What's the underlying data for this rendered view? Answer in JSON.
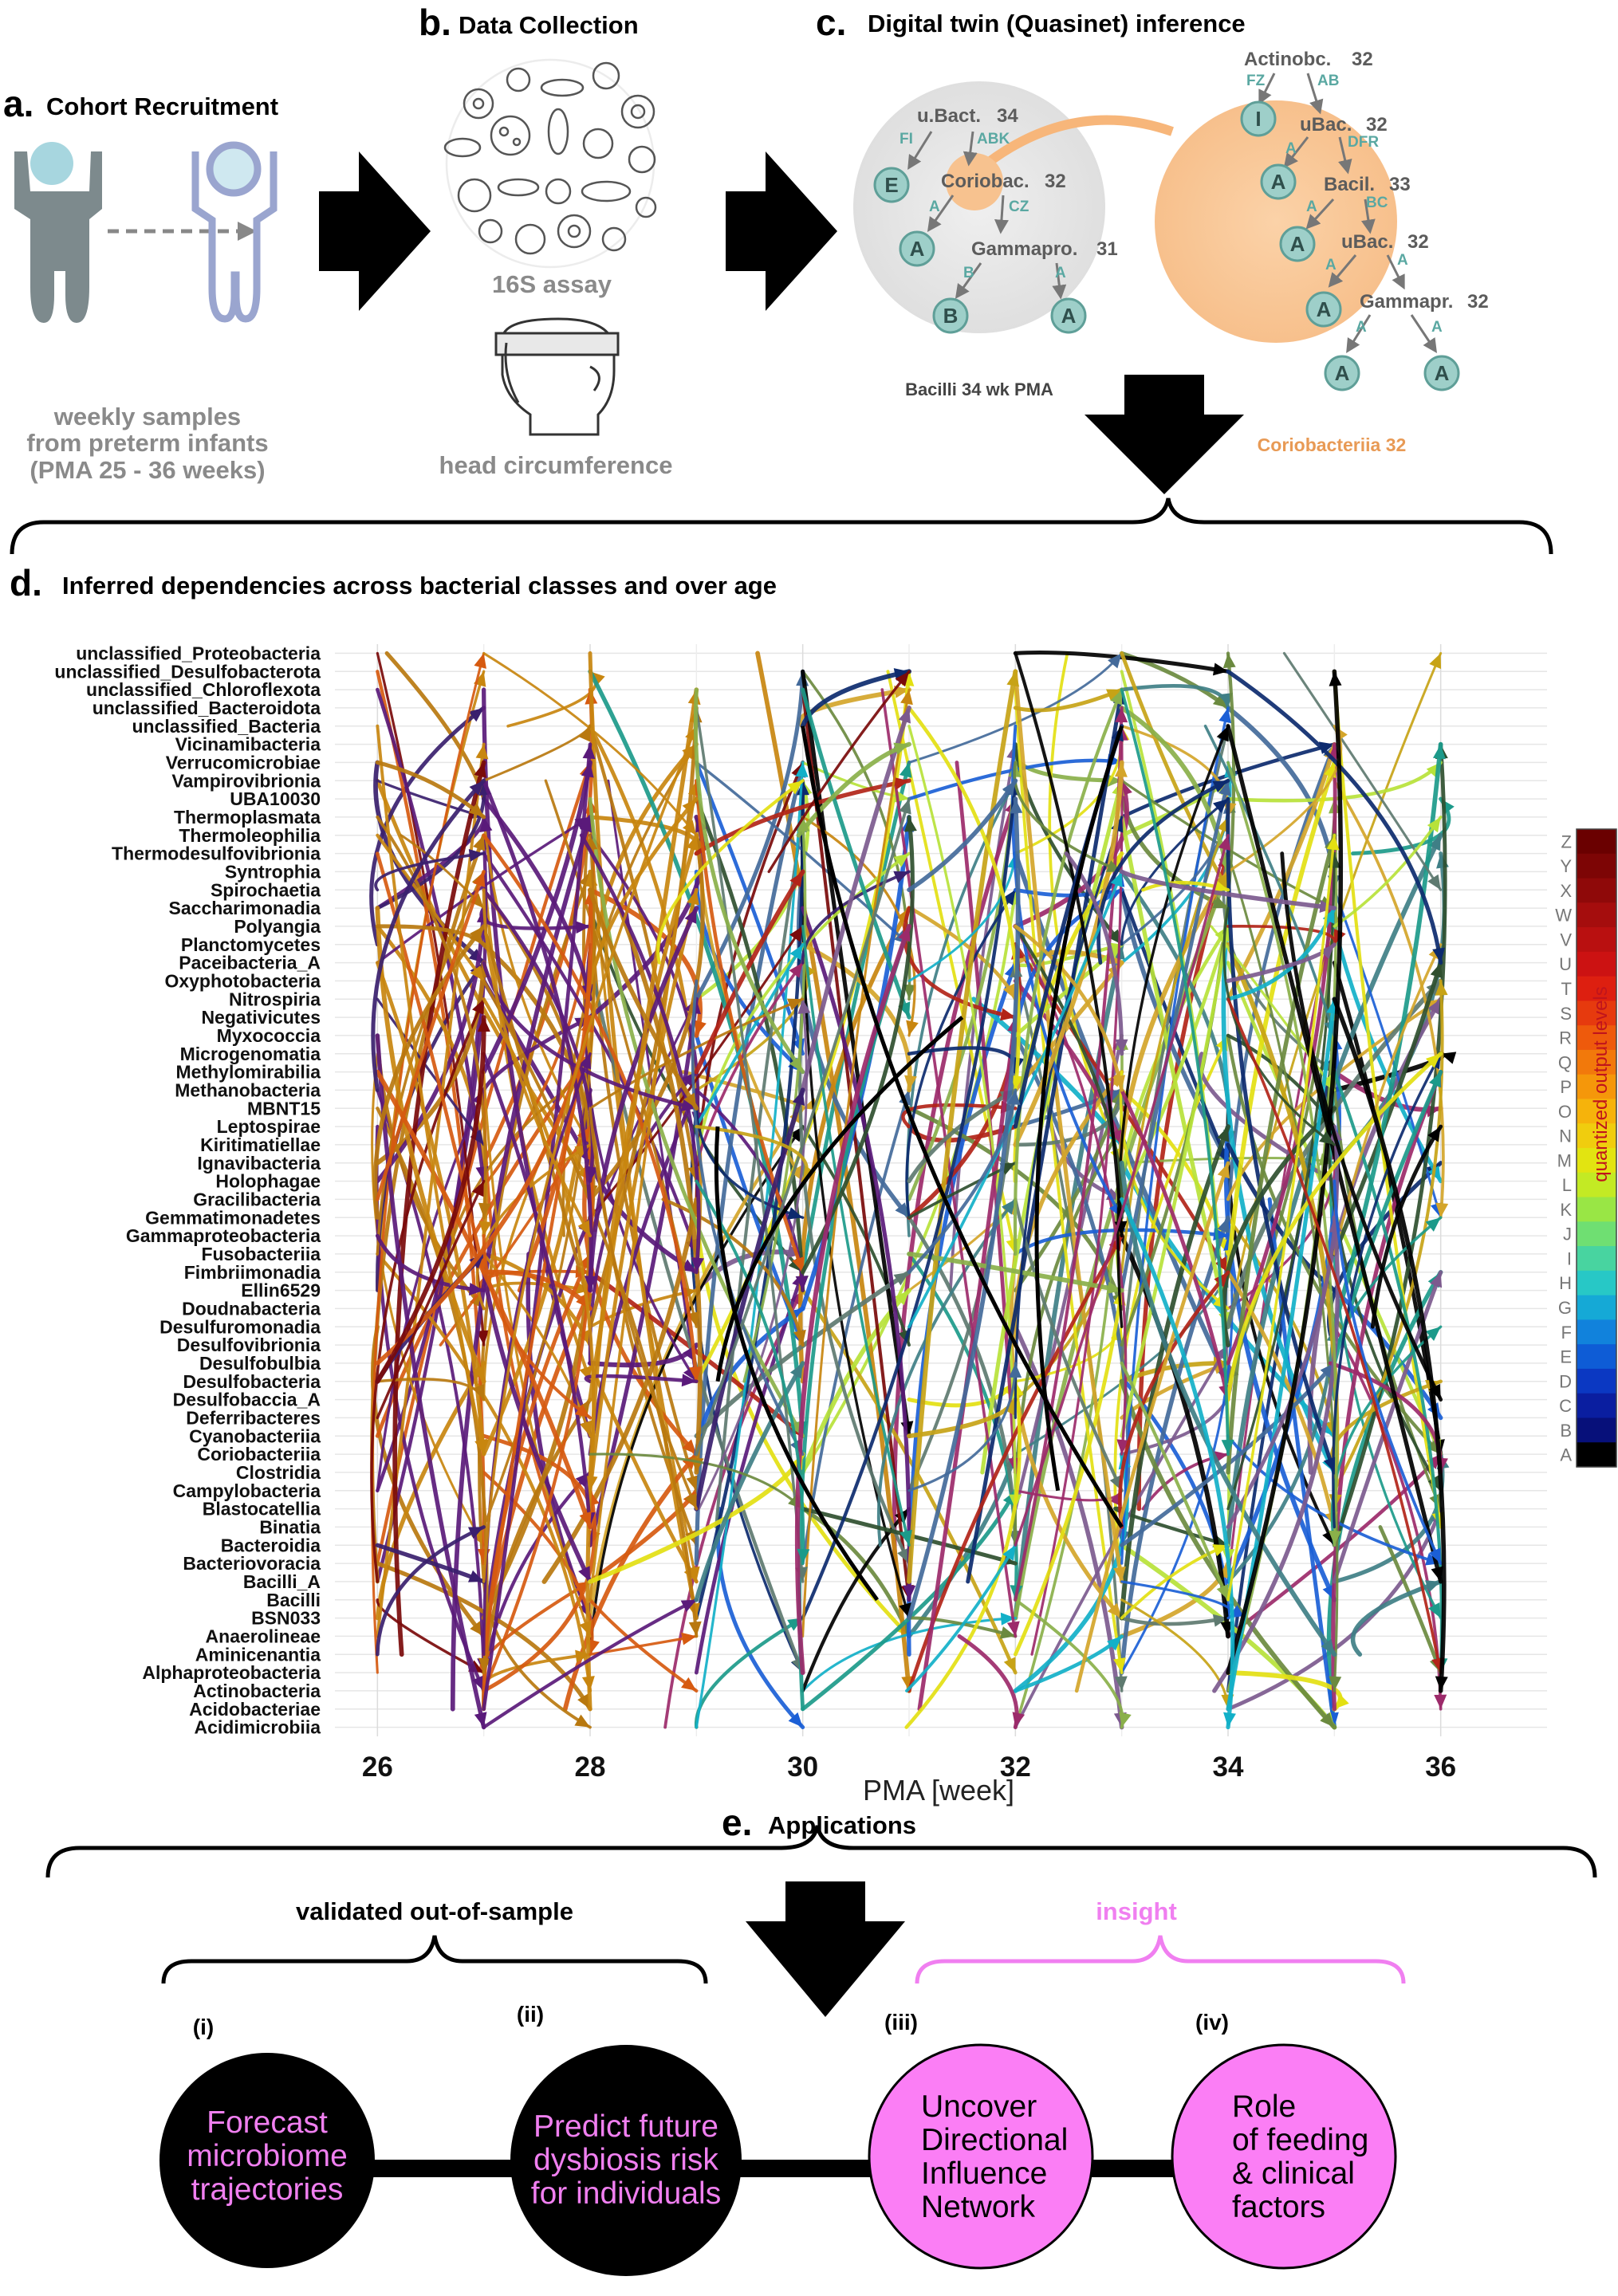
{
  "panel_a": {
    "letter": "a.",
    "title": "Cohort Recruitment",
    "caption": [
      "weekly samples",
      "from preterm infants",
      "(PMA 25 - 36 weeks)"
    ]
  },
  "panel_b": {
    "letter": "b.",
    "title": "Data Collection",
    "assay_label": "16S assay",
    "measure_label": "head circumference"
  },
  "panel_c": {
    "letter": "c.",
    "title": "Digital twin (Quasinet) inference",
    "gray_tree": {
      "caption": "Bacilli 34 wk PMA",
      "nodes": [
        "E",
        "A",
        "B",
        "A"
      ],
      "labels": [
        {
          "name": "u.Bact.",
          "num": "34"
        },
        {
          "name": "Coriobac.",
          "num": "32"
        },
        {
          "name": "Gammapro.",
          "num": "31"
        }
      ],
      "edge_labels": [
        "FI",
        "ABK",
        "A",
        "CZ",
        "B",
        "A"
      ]
    },
    "orange_tree": {
      "caption": "Coriobacteriia 32",
      "nodes": [
        "I",
        "A",
        "A",
        "A",
        "A",
        "A",
        "A"
      ],
      "labels": [
        {
          "name": "Actinobc.",
          "num": "32"
        },
        {
          "name": "uBac.",
          "num": "32"
        },
        {
          "name": "Bacil.",
          "num": "33"
        },
        {
          "name": "uBac.",
          "num": "32"
        },
        {
          "name": "Gammapr.",
          "num": "32"
        }
      ],
      "edge_labels": [
        "FZ",
        "AB",
        "A",
        "DFR",
        "A",
        "BC",
        "A",
        "A",
        "A",
        "A"
      ]
    }
  },
  "panel_d": {
    "letter": "d.",
    "title": "Inferred dependencies across bacterial classes and over age",
    "colorbar_title": "quantized output levels",
    "colorbar_levels": [
      "Z",
      "Y",
      "X",
      "W",
      "V",
      "U",
      "T",
      "S",
      "R",
      "Q",
      "P",
      "O",
      "N",
      "M",
      "L",
      "K",
      "J",
      "I",
      "H",
      "G",
      "F",
      "E",
      "D",
      "C",
      "B",
      "A"
    ],
    "colorbar_colors": [
      "#6a0000",
      "#7d0505",
      "#8f0909",
      "#a50d0d",
      "#b91010",
      "#cc1212",
      "#dd1f10",
      "#e63a0e",
      "#ee5a0c",
      "#f2790b",
      "#f5970a",
      "#f6b30b",
      "#f0cd0e",
      "#e2e411",
      "#c3ea24",
      "#99e645",
      "#6fdf72",
      "#48d4a0",
      "#27c8c6",
      "#15a9d6",
      "#1182dc",
      "#0e5cd6",
      "#0b38c2",
      "#0a1ea0",
      "#07107a",
      "#000000"
    ]
  },
  "chart_data": {
    "type": "network",
    "xlabel": "PMA [week]",
    "xlim": [
      25.6,
      37.0
    ],
    "xticks": [
      26,
      28,
      30,
      32,
      34,
      36
    ],
    "categories": [
      "unclassified_Proteobacteria",
      "unclassified_Desulfobacterota",
      "unclassified_Chloroflexota",
      "unclassified_Bacteroidota",
      "unclassified_Bacteria",
      "Vicinamibacteria",
      "Verrucomicrobiae",
      "Vampirovibrionia",
      "UBA10030",
      "Thermoplasmata",
      "Thermoleophilia",
      "Thermodesulfovibrionia",
      "Syntrophia",
      "Spirochaetia",
      "Saccharimonadia",
      "Polyangia",
      "Planctomycetes",
      "Paceibacteria_A",
      "Oxyphotobacteria",
      "Nitrospiria",
      "Negativicutes",
      "Myxococcia",
      "Microgenomatia",
      "Methylomirabilia",
      "Methanobacteria",
      "MBNT15",
      "Leptospirae",
      "Kiritimatiellae",
      "Ignavibacteria",
      "Holophagae",
      "Gracilibacteria",
      "Gemmatimonadetes",
      "Gammaproteobacteria",
      "Fusobacteriia",
      "Fimbriimonadia",
      "Ellin6529",
      "Doudnabacteria",
      "Desulfuromonadia",
      "Desulfovibrionia",
      "Desulfobulbia",
      "Desulfobacteria",
      "Desulfobaccia_A",
      "Deferribacteres",
      "Cyanobacteriia",
      "Coriobacteriia",
      "Clostridia",
      "Campylobacteria",
      "Blastocatellia",
      "Binatia",
      "Bacteroidia",
      "Bacteriovoracia",
      "Bacilli_A",
      "Bacilli",
      "BSN033",
      "Anaerolineae",
      "Aminicenantia",
      "Alphaproteobacteria",
      "Actinobacteria",
      "Acidobacteriae",
      "Acidimicrobiia"
    ],
    "edges_note": "approx. 900 directed dependency arcs between consecutive and non-adjacent weeks, colored by quantized output level A–Z"
  },
  "panel_e": {
    "letter": "e.",
    "title": "Applications",
    "left_group": "validated out-of-sample",
    "right_group": "insight",
    "items": [
      {
        "num": "(i)",
        "lines": [
          "Forecast",
          "microbiome",
          "trajectories"
        ]
      },
      {
        "num": "(ii)",
        "lines": [
          "Predict future",
          "dysbiosis risk",
          "for individuals"
        ]
      },
      {
        "num": "(iii)",
        "lines": [
          "Uncover",
          "Directional",
          "Influence",
          "Network"
        ]
      },
      {
        "num": "(iv)",
        "lines": [
          "Role",
          "of feeding",
          "& clinical",
          "factors"
        ]
      }
    ],
    "colors": {
      "dark_circle": "#000000",
      "pink_circle": "#fb7ef5",
      "pink_text": "#f07ff0",
      "insight": "#f07ff0"
    }
  }
}
